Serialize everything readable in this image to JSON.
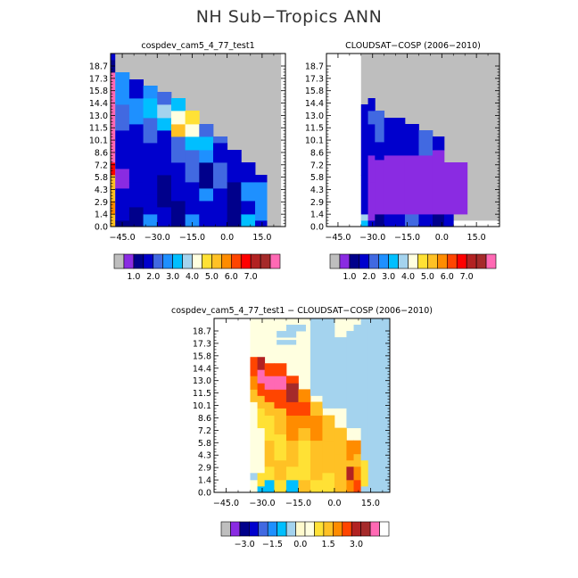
{
  "page_title": "NH Sub−Tropics ANN",
  "colors": {
    "missing": "#bebebe",
    "seq_palette": [
      "#bebebe",
      "#8a2be2",
      "#00008b",
      "#0000cd",
      "#4169e1",
      "#1e90ff",
      "#00bfff",
      "#a4d3ee",
      "#ffffe0",
      "#ffe135",
      "#ffc125",
      "#ff8c00",
      "#ff4500",
      "#ff0000",
      "#b22222",
      "#a52a2a",
      "#ff69b4"
    ],
    "diff_palette": [
      "#bebebe",
      "#8a2be2",
      "#00008b",
      "#0000cd",
      "#4169e1",
      "#1e90ff",
      "#00bfff",
      "#a4d3ee",
      "#fffacd",
      "#ffffe0",
      "#ffe135",
      "#ffc125",
      "#ff8c00",
      "#ff4500",
      "#b22222",
      "#a52a2a",
      "#ff69b4",
      "#ffffff"
    ]
  },
  "chart_data": [
    {
      "id": "model",
      "type": "heatmap",
      "title": "cospdev_cam5_4_77_test1",
      "x_ticks": [
        "−45.0",
        "−30.0",
        "−15.0",
        "0.0",
        "15.0"
      ],
      "y_ticks": [
        "0.0",
        "1.4",
        "2.9",
        "4.3",
        "5.8",
        "7.2",
        "8.6",
        "10.1",
        "11.5",
        "13.0",
        "14.4",
        "15.8",
        "17.3",
        "18.7"
      ],
      "colorbar_labels": [
        "1.0",
        "2.0",
        "3.0",
        "4.0",
        "5.0",
        "6.0",
        "7.0"
      ],
      "xlim": [
        -50,
        25
      ],
      "ylim": [
        0,
        19.4
      ],
      "cells": [
        [
          -50,
          -48,
          0,
          1.4,
          10
        ],
        [
          -50,
          -48,
          1.4,
          2.9,
          11
        ],
        [
          -50,
          -48,
          2.9,
          5.8,
          10
        ],
        [
          -50,
          -48,
          5.8,
          7.2,
          13
        ],
        [
          -50,
          -48,
          7.2,
          17.3,
          16
        ],
        [
          -50,
          -48,
          17.3,
          18.7,
          2
        ],
        [
          -50,
          -48,
          18.7,
          19.4,
          3
        ],
        [
          -48,
          23,
          0,
          19.4,
          0
        ],
        [
          -48,
          -42,
          0,
          0.7,
          2
        ],
        [
          -48,
          -42,
          0.7,
          4.3,
          3
        ],
        [
          -48,
          -42,
          4.3,
          6.5,
          1
        ],
        [
          -48,
          -42,
          6.5,
          10.8,
          3
        ],
        [
          -48,
          -42,
          10.8,
          13.7,
          4
        ],
        [
          -48,
          -42,
          13.7,
          17.3,
          5
        ],
        [
          -42,
          -36,
          0,
          2.2,
          2
        ],
        [
          -42,
          -36,
          2.2,
          5.0,
          3
        ],
        [
          -42,
          -36,
          5.0,
          11.5,
          3
        ],
        [
          -42,
          -36,
          11.5,
          14.4,
          5
        ],
        [
          -42,
          -36,
          14.4,
          16.5,
          3
        ],
        [
          -36,
          -30,
          0,
          1.4,
          5
        ],
        [
          -36,
          -30,
          1.4,
          3.6,
          3
        ],
        [
          -36,
          -30,
          3.6,
          9.4,
          3
        ],
        [
          -36,
          -30,
          9.4,
          12.2,
          4
        ],
        [
          -36,
          -30,
          12.2,
          14.4,
          6
        ],
        [
          -36,
          -30,
          14.4,
          15.8,
          5
        ],
        [
          -30,
          -24,
          0,
          2.2,
          3
        ],
        [
          -30,
          -24,
          2.2,
          5.8,
          2
        ],
        [
          -30,
          -24,
          5.8,
          10.8,
          3
        ],
        [
          -30,
          -24,
          10.8,
          12.2,
          6
        ],
        [
          -30,
          -24,
          12.2,
          13.7,
          7
        ],
        [
          -30,
          -24,
          13.7,
          15.1,
          4
        ],
        [
          -24,
          -18,
          0,
          2.9,
          2
        ],
        [
          -24,
          -18,
          2.9,
          7.2,
          3
        ],
        [
          -24,
          -18,
          7.2,
          10.1,
          4
        ],
        [
          -24,
          -18,
          10.1,
          11.5,
          10
        ],
        [
          -24,
          -18,
          11.5,
          13.0,
          8
        ],
        [
          -24,
          -18,
          13.0,
          14.4,
          6
        ],
        [
          -18,
          -12,
          0,
          1.4,
          5
        ],
        [
          -18,
          -12,
          1.4,
          5.0,
          3
        ],
        [
          -18,
          -12,
          5.0,
          8.6,
          4
        ],
        [
          -18,
          -12,
          8.6,
          10.1,
          6
        ],
        [
          -18,
          -12,
          10.1,
          11.5,
          8
        ],
        [
          -18,
          -12,
          11.5,
          13.0,
          9
        ],
        [
          -12,
          -6,
          0,
          2.9,
          3
        ],
        [
          -12,
          -6,
          2.9,
          4.3,
          5
        ],
        [
          -12,
          -6,
          4.3,
          7.2,
          2
        ],
        [
          -12,
          -6,
          7.2,
          8.6,
          5
        ],
        [
          -12,
          -6,
          8.6,
          10.1,
          6
        ],
        [
          -12,
          -6,
          10.1,
          11.5,
          4
        ],
        [
          -6,
          0,
          0,
          4.3,
          3
        ],
        [
          -6,
          0,
          4.3,
          7.2,
          4
        ],
        [
          -6,
          0,
          7.2,
          9.4,
          3
        ],
        [
          -6,
          0,
          9.4,
          10.1,
          4
        ],
        [
          0,
          6,
          0,
          5.0,
          2
        ],
        [
          0,
          6,
          5.0,
          8.6,
          3
        ],
        [
          6,
          12,
          0,
          1.4,
          6
        ],
        [
          6,
          12,
          1.4,
          2.9,
          3
        ],
        [
          6,
          12,
          2.9,
          5.0,
          5
        ],
        [
          6,
          12,
          5.0,
          7.2,
          3
        ],
        [
          12,
          17,
          0,
          0.7,
          3
        ],
        [
          12,
          17,
          0.7,
          5.0,
          5
        ],
        [
          12,
          17,
          5.0,
          5.8,
          3
        ]
      ]
    },
    {
      "id": "obs",
      "type": "heatmap",
      "title": "CLOUDSAT−COSP (2006−2010)",
      "x_ticks": [
        "−45.0",
        "−30.0",
        "−15.0",
        "0.0",
        "15.0"
      ],
      "y_ticks": [
        "0.0",
        "1.4",
        "2.9",
        "4.3",
        "5.8",
        "7.2",
        "8.6",
        "10.1",
        "11.5",
        "13.0",
        "14.4",
        "15.8",
        "17.3",
        "18.7"
      ],
      "colorbar_labels": [
        "1.0",
        "2.0",
        "3.0",
        "4.0",
        "5.0",
        "6.0",
        "7.0"
      ],
      "xlim": [
        -50,
        25
      ],
      "ylim": [
        0,
        19.4
      ],
      "cells": [
        [
          -35,
          25,
          0.7,
          19.4,
          0
        ],
        [
          -35,
          -32,
          0,
          0.7,
          6
        ],
        [
          -35,
          -32,
          0.7,
          1.4,
          7
        ],
        [
          -35,
          -32,
          1.4,
          5.8,
          3
        ],
        [
          -35,
          -32,
          5.8,
          13.7,
          3
        ],
        [
          -32,
          -29,
          0,
          0.7,
          3
        ],
        [
          -32,
          -29,
          0.7,
          5.0,
          1
        ],
        [
          -32,
          -29,
          5.0,
          8.0,
          1
        ],
        [
          -32,
          -29,
          8.0,
          11.5,
          3
        ],
        [
          -32,
          -29,
          11.5,
          13.0,
          4
        ],
        [
          -32,
          -29,
          13.0,
          14.4,
          3
        ],
        [
          -29,
          -25,
          0,
          1.4,
          2
        ],
        [
          -29,
          -25,
          1.4,
          7.5,
          1
        ],
        [
          -29,
          -25,
          7.5,
          9.5,
          3
        ],
        [
          -29,
          -25,
          9.5,
          13.0,
          4
        ],
        [
          -25,
          -16,
          0,
          1.4,
          3
        ],
        [
          -25,
          -16,
          1.4,
          8.0,
          1
        ],
        [
          -25,
          -16,
          8.0,
          12.2,
          3
        ],
        [
          -16,
          -10,
          0,
          1.4,
          4
        ],
        [
          -16,
          -10,
          1.4,
          8.0,
          1
        ],
        [
          -16,
          -10,
          8.0,
          11.5,
          3
        ],
        [
          -10,
          -4,
          0,
          1.4,
          3
        ],
        [
          -10,
          -4,
          1.4,
          8.0,
          1
        ],
        [
          -10,
          -4,
          8.0,
          10.8,
          4
        ],
        [
          -4,
          1,
          0,
          1.4,
          2
        ],
        [
          -4,
          1,
          1.4,
          8.6,
          1
        ],
        [
          -4,
          1,
          8.6,
          10.1,
          3
        ],
        [
          1,
          5,
          0,
          1.4,
          3
        ],
        [
          1,
          5,
          1.4,
          7.2,
          1
        ],
        [
          5,
          11,
          1.4,
          7.2,
          1
        ]
      ]
    },
    {
      "id": "diff",
      "type": "heatmap",
      "title": "cospdev_cam5_4_77_test1 − CLOUDSAT−COSP (2006−2010)",
      "x_ticks": [
        "−45.0",
        "−30.0",
        "−15.0",
        "0.0",
        "15.0"
      ],
      "y_ticks": [
        "0.0",
        "1.4",
        "2.9",
        "4.3",
        "5.8",
        "7.2",
        "8.6",
        "10.1",
        "11.5",
        "13.0",
        "14.4",
        "15.8",
        "17.3",
        "18.7"
      ],
      "colorbar_labels": [
        "−3.0",
        "−1.5",
        "0.0",
        "1.5",
        "3.0"
      ],
      "xlim": [
        -50,
        23
      ],
      "ylim": [
        0,
        19.4
      ],
      "cells": [
        [
          -35,
          23,
          0,
          19.4,
          9
        ],
        [
          -35,
          -32,
          1.4,
          2.2,
          7
        ],
        [
          -35,
          -32,
          2.2,
          3.6,
          9
        ],
        [
          -35,
          -32,
          3.6,
          10.1,
          9
        ],
        [
          -35,
          -32,
          10.1,
          11.5,
          11
        ],
        [
          -35,
          -32,
          11.5,
          13.0,
          12
        ],
        [
          -35,
          -32,
          13.0,
          15.1,
          13
        ],
        [
          -32,
          -29,
          0,
          0.7,
          6
        ],
        [
          -32,
          -29,
          0.7,
          2.2,
          10
        ],
        [
          -32,
          -29,
          2.2,
          7.2,
          9
        ],
        [
          -32,
          -29,
          7.2,
          9.4,
          10
        ],
        [
          -32,
          -29,
          9.4,
          10.8,
          11
        ],
        [
          -32,
          -29,
          10.8,
          12.2,
          13
        ],
        [
          -32,
          -29,
          12.2,
          13.7,
          16
        ],
        [
          -32,
          -29,
          13.7,
          15.1,
          14
        ],
        [
          -29,
          -25,
          0,
          1.4,
          6
        ],
        [
          -29,
          -25,
          1.4,
          2.9,
          10
        ],
        [
          -29,
          -25,
          2.9,
          5.8,
          11
        ],
        [
          -29,
          -25,
          5.8,
          8.6,
          10
        ],
        [
          -29,
          -25,
          8.6,
          10.1,
          11
        ],
        [
          -29,
          -25,
          10.1,
          11.5,
          13
        ],
        [
          -29,
          -25,
          11.5,
          13.0,
          16
        ],
        [
          -29,
          -25,
          13.0,
          14.4,
          13
        ],
        [
          -25,
          -20,
          0,
          1.4,
          10
        ],
        [
          -25,
          -20,
          1.4,
          3.6,
          11
        ],
        [
          -25,
          -20,
          3.6,
          6.5,
          10
        ],
        [
          -25,
          -20,
          6.5,
          9.4,
          11
        ],
        [
          -25,
          -20,
          9.4,
          11.5,
          13
        ],
        [
          -25,
          -20,
          11.5,
          13.0,
          16
        ],
        [
          -25,
          -20,
          13.0,
          14.4,
          13
        ],
        [
          -20,
          -15,
          0,
          1.4,
          6
        ],
        [
          -20,
          -15,
          1.4,
          2.9,
          10
        ],
        [
          -20,
          -15,
          2.9,
          5.8,
          11
        ],
        [
          -20,
          -15,
          5.8,
          8.6,
          12
        ],
        [
          -20,
          -15,
          8.6,
          10.1,
          13
        ],
        [
          -20,
          -15,
          10.1,
          12.2,
          15
        ],
        [
          -20,
          -15,
          12.2,
          13.0,
          13
        ],
        [
          -15,
          -10,
          0,
          1.4,
          11
        ],
        [
          -15,
          -10,
          1.4,
          5.8,
          10
        ],
        [
          -15,
          -10,
          5.8,
          7.2,
          11
        ],
        [
          -15,
          -10,
          7.2,
          8.6,
          12
        ],
        [
          -15,
          -10,
          8.6,
          10.1,
          13
        ],
        [
          -15,
          -10,
          10.1,
          11.5,
          12
        ],
        [
          -10,
          -5,
          0,
          1.4,
          10
        ],
        [
          -10,
          -5,
          1.4,
          5.8,
          11
        ],
        [
          -10,
          -5,
          5.8,
          7.2,
          12
        ],
        [
          -10,
          -5,
          7.2,
          8.6,
          12
        ],
        [
          -10,
          -5,
          8.6,
          10.1,
          11
        ],
        [
          -10,
          -5,
          10.8,
          19.4,
          7
        ],
        [
          -5,
          0,
          0,
          2.2,
          10
        ],
        [
          -5,
          0,
          2.2,
          5.8,
          11
        ],
        [
          -5,
          0,
          5.8,
          7.2,
          11
        ],
        [
          -5,
          0,
          7.2,
          8.6,
          11
        ],
        [
          -5,
          0,
          9.4,
          19.4,
          7
        ],
        [
          0,
          5,
          0,
          2.2,
          11
        ],
        [
          0,
          5,
          2.2,
          4.3,
          11
        ],
        [
          0,
          5,
          4.3,
          7.2,
          11
        ],
        [
          0,
          5,
          9.4,
          17.3,
          7
        ],
        [
          5,
          8,
          0,
          1.4,
          12
        ],
        [
          5,
          8,
          1.4,
          2.9,
          14
        ],
        [
          5,
          8,
          2.9,
          3.6,
          11
        ],
        [
          5,
          8,
          3.6,
          5.8,
          12
        ],
        [
          5,
          8,
          7.2,
          18.0,
          7
        ],
        [
          8,
          11,
          0,
          1.4,
          13
        ],
        [
          8,
          11,
          1.4,
          2.9,
          12
        ],
        [
          8,
          11,
          2.9,
          4.3,
          11
        ],
        [
          8,
          11,
          4.3,
          5.8,
          12
        ],
        [
          8,
          11,
          7.2,
          18.7,
          7
        ],
        [
          11,
          14,
          0,
          0.7,
          7
        ],
        [
          11,
          14,
          0.7,
          3.6,
          10
        ],
        [
          11,
          14,
          3.6,
          5.8,
          7
        ],
        [
          11,
          14,
          5.8,
          19.4,
          7
        ],
        [
          14,
          23,
          0,
          11.5,
          7
        ],
        [
          14,
          23,
          11.5,
          19.4,
          7
        ],
        [
          -24,
          -16,
          17.3,
          18.0,
          7
        ],
        [
          -24,
          -16,
          16.5,
          17.0,
          7
        ],
        [
          -20,
          -12,
          18.0,
          18.7,
          7
        ]
      ]
    }
  ]
}
